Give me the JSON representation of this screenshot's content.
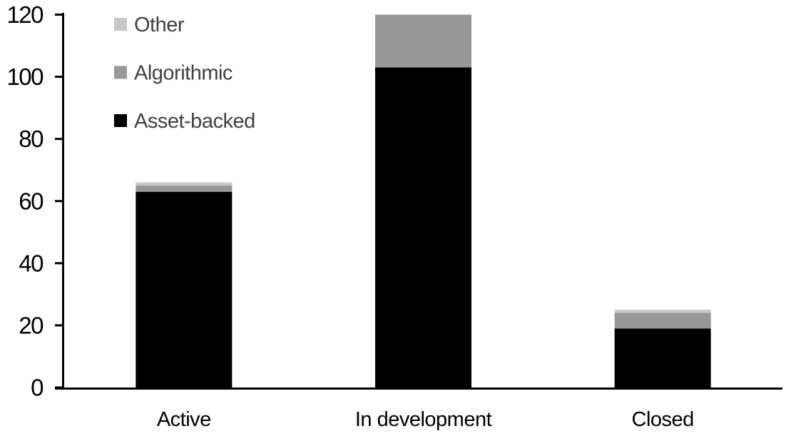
{
  "chart_data": {
    "type": "bar",
    "stacked": true,
    "title": "",
    "xlabel": "",
    "ylabel": "",
    "categories": [
      "Active",
      "In development",
      "Closed"
    ],
    "series": [
      {
        "name": "Asset-backed",
        "color": "#000000",
        "values": [
          63,
          103,
          19
        ]
      },
      {
        "name": "Algorithmic",
        "color": "#989898",
        "values": [
          2,
          17,
          5
        ]
      },
      {
        "name": "Other",
        "color": "#c8c8c8",
        "values": [
          1,
          0,
          1
        ]
      }
    ],
    "ylim": [
      0,
      120
    ],
    "yticks": [
      0,
      20,
      40,
      60,
      80,
      100,
      120
    ],
    "grid": false,
    "legend": {
      "position": "top-left",
      "entries": [
        {
          "label": "Other",
          "color": "#c8c8c8"
        },
        {
          "label": "Algorithmic",
          "color": "#989898"
        },
        {
          "label": "Asset-backed",
          "color": "#000000"
        }
      ]
    },
    "axis_color": "#000000",
    "tick_label_color": "#000000",
    "legend_text_color": "#404040",
    "background": "#ffffff"
  }
}
